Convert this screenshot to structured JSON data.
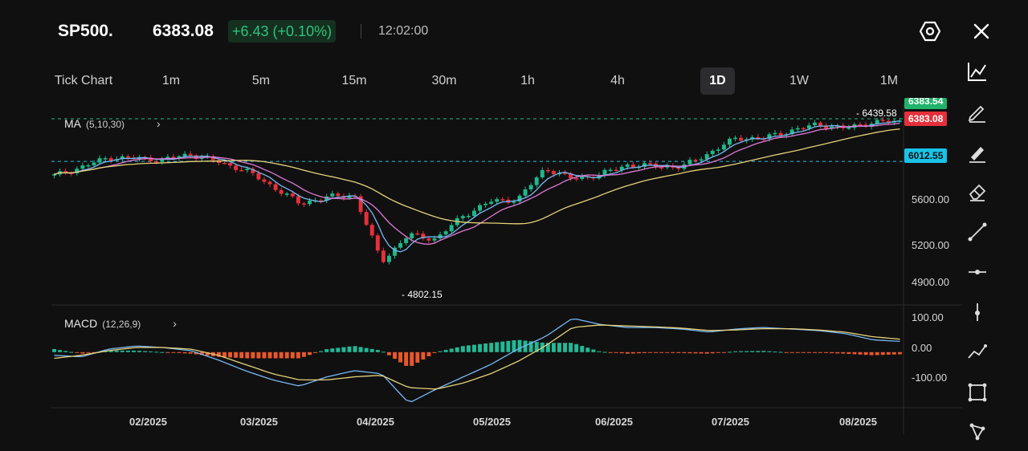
{
  "header": {
    "symbol": "SP500.",
    "price": "6383.08",
    "change": "+6.43 (+0.10%)",
    "time": "12:02:00"
  },
  "icons": {
    "settings": "hexagon-settings-icon",
    "close": "close-icon"
  },
  "timeframes": [
    {
      "label": "Tick Chart"
    },
    {
      "label": "1m"
    },
    {
      "label": "5m"
    },
    {
      "label": "15m"
    },
    {
      "label": "30m"
    },
    {
      "label": "1h"
    },
    {
      "label": "4h"
    },
    {
      "label": "1D",
      "active": true
    },
    {
      "label": "1W"
    },
    {
      "label": "1M"
    }
  ],
  "indicators": {
    "ma": {
      "name": "MA",
      "params": "(5,10,30)"
    },
    "macd": {
      "name": "MACD",
      "params": "(12,26,9)"
    }
  },
  "price_tags": {
    "ask": "6383.54",
    "last": "6383.08",
    "level": "6012.55",
    "high": "6439.58",
    "low": "4802.15"
  },
  "price_axis": [
    "5600.00",
    "5200.00",
    "4900.00"
  ],
  "macd_axis": [
    "100.00",
    "0.00",
    "-100.00"
  ],
  "x_axis": [
    "02/2025",
    "03/2025",
    "04/2025",
    "05/2025",
    "06/2025",
    "07/2025",
    "08/2025"
  ],
  "colors": {
    "background": "#101010",
    "up": "#1fb88a",
    "down": "#e5303b",
    "ma5": "#7ab8f5",
    "ma10": "#e07ad8",
    "ma30": "#e6d27a",
    "level": "#19c3e8",
    "macd_up": "#22b895",
    "macd_down": "#e8582a"
  },
  "tools": [
    "trend-chart-icon",
    "pencil-icon",
    "highlighter-icon",
    "eraser-icon",
    "line-icon",
    "horizontal-line-icon",
    "vertical-line-icon",
    "polyline-icon",
    "rectangle-icon",
    "shape-icon"
  ],
  "chart_data": {
    "type": "candlestick",
    "symbol": "SP500.",
    "x": [
      "2025-01-06",
      "2025-01-13",
      "2025-01-20",
      "2025-01-27",
      "2025-02-03",
      "2025-02-10",
      "2025-02-17",
      "2025-02-24",
      "2025-03-03",
      "2025-03-10",
      "2025-03-17",
      "2025-03-24",
      "2025-03-31",
      "2025-04-07",
      "2025-04-14",
      "2025-04-21",
      "2025-04-28",
      "2025-05-05",
      "2025-05-12",
      "2025-05-19",
      "2025-05-26",
      "2025-06-02",
      "2025-06-09",
      "2025-06-16",
      "2025-06-23",
      "2025-06-30",
      "2025-07-07",
      "2025-07-14",
      "2025-07-21",
      "2025-07-28",
      "2025-08-04",
      "2025-08-11"
    ],
    "close": [
      5880,
      5960,
      6050,
      6040,
      6030,
      6080,
      6010,
      5930,
      5780,
      5620,
      5680,
      5700,
      5080,
      5330,
      5290,
      5510,
      5640,
      5660,
      5950,
      5850,
      5890,
      5980,
      5970,
      5960,
      6090,
      6230,
      6230,
      6300,
      6360,
      6320,
      6380,
      6383
    ],
    "ma_periods": [
      5,
      10,
      30
    ],
    "price_ylim": [
      4750,
      6500
    ],
    "level_line": 6012.55,
    "high_label": 6439.58,
    "low_label": 4802.15,
    "macd": {
      "params": "12,26,9",
      "ylim": [
        -180,
        140
      ],
      "dif": [
        -10,
        -15,
        10,
        20,
        15,
        5,
        -25,
        -60,
        -90,
        -110,
        -80,
        -60,
        -70,
        -165,
        -120,
        -80,
        -40,
        10,
        50,
        110,
        90,
        80,
        80,
        75,
        65,
        75,
        80,
        75,
        70,
        60,
        40,
        35
      ],
      "dea": [
        -20,
        -10,
        5,
        15,
        15,
        10,
        -10,
        -40,
        -70,
        -90,
        -90,
        -80,
        -75,
        -115,
        -120,
        -100,
        -70,
        -30,
        20,
        80,
        88,
        85,
        82,
        78,
        70,
        72,
        76,
        76,
        72,
        65,
        50,
        42
      ]
    }
  }
}
